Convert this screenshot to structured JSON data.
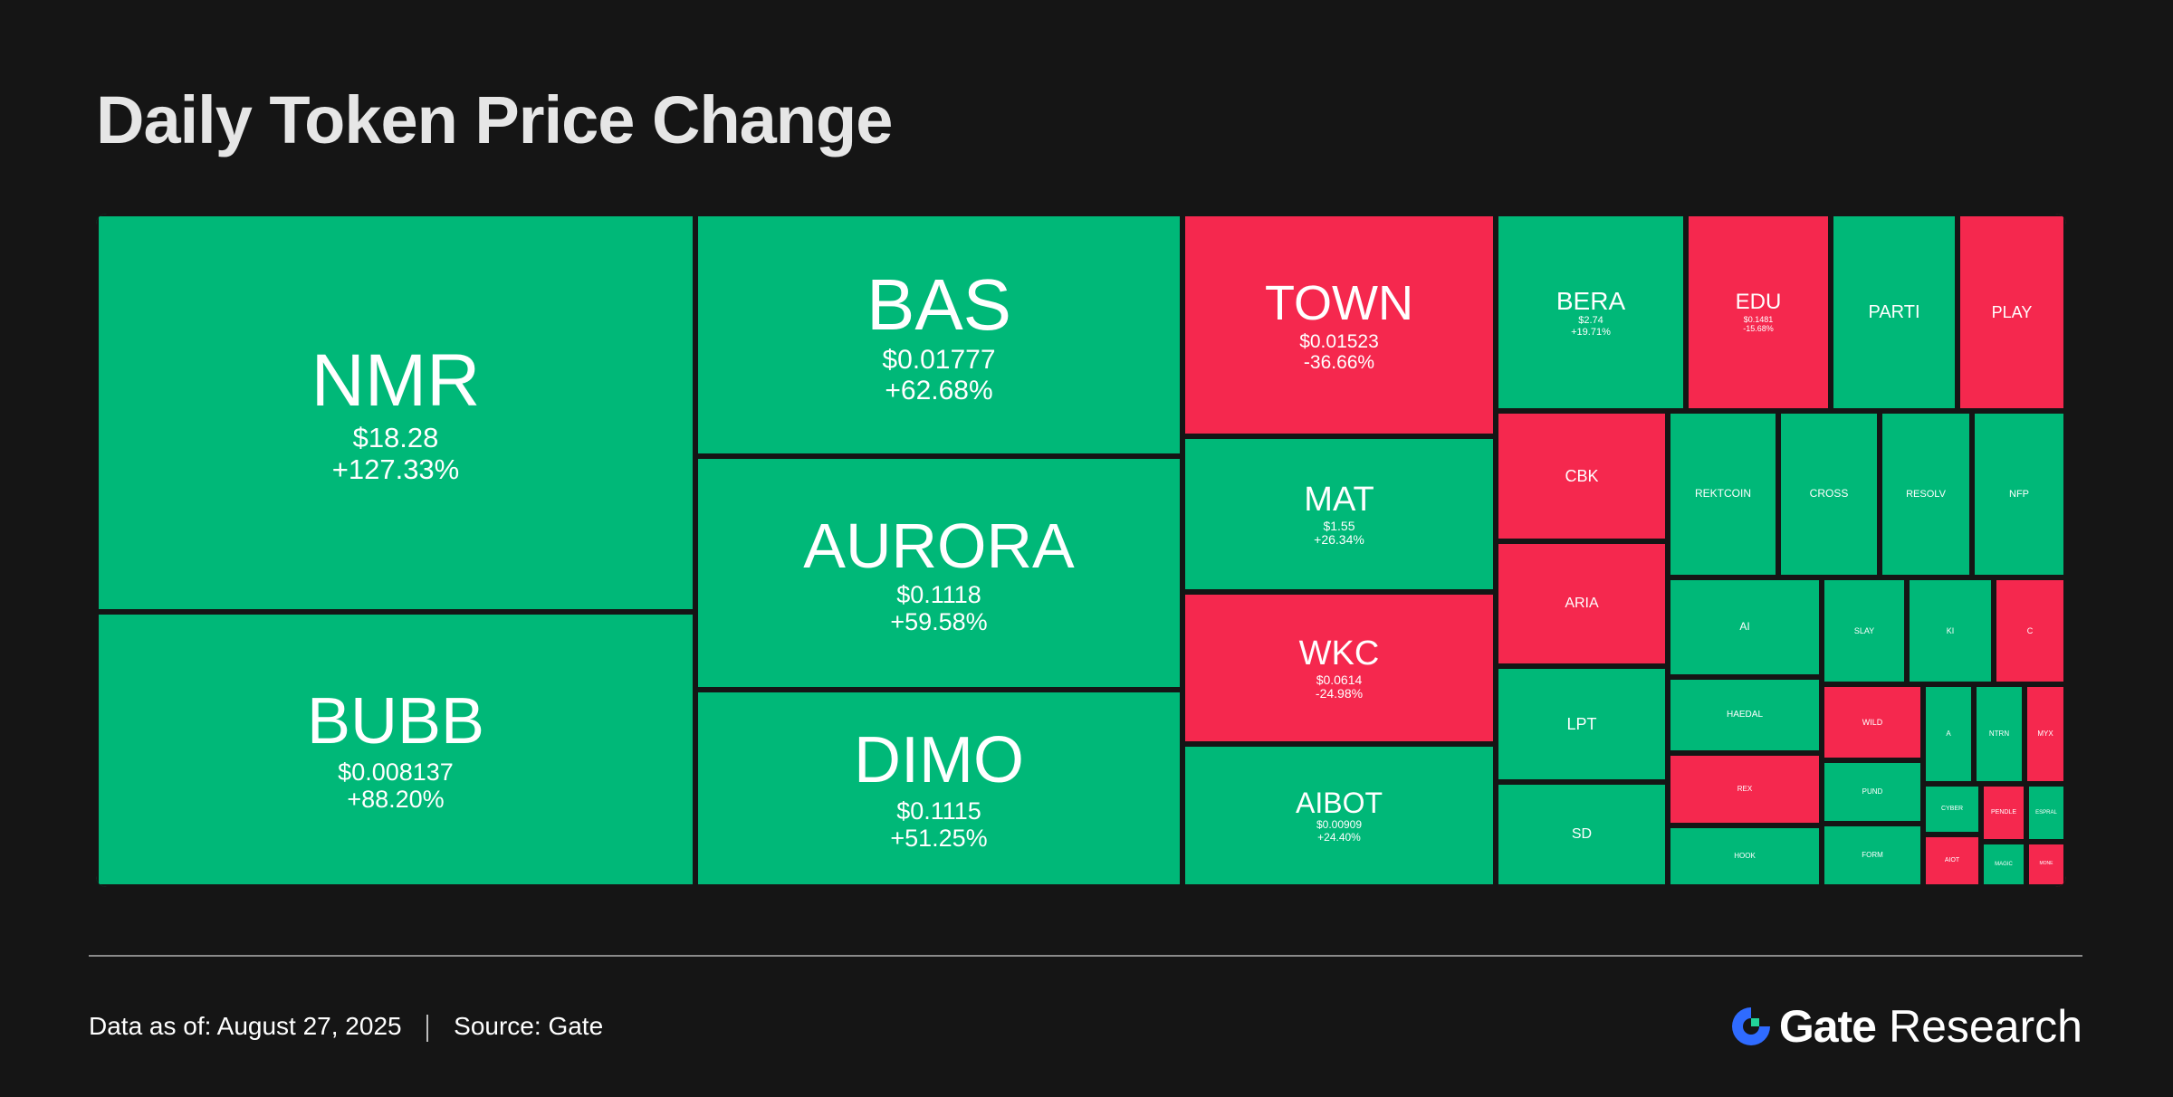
{
  "title": "Daily Token Price Change",
  "footer": {
    "date_label": "Data as of:",
    "date_value": "August  27, 2025",
    "source_label": "Source:",
    "source_value": "Gate"
  },
  "brand": {
    "name": "Gate",
    "suffix": "Research"
  },
  "colors": {
    "up": "#00b878",
    "down": "#f5284e",
    "background": "#151515"
  },
  "chart_data": {
    "type": "treemap",
    "title": "Daily Token Price Change",
    "tiles": [
      {
        "symbol": "NMR",
        "price": "$18.28",
        "change": "+127.33%",
        "direction": "up"
      },
      {
        "symbol": "BUBB",
        "price": "$0.008137",
        "change": "+88.20%",
        "direction": "up"
      },
      {
        "symbol": "BAS",
        "price": "$0.01777",
        "change": "+62.68%",
        "direction": "up"
      },
      {
        "symbol": "AURORA",
        "price": "$0.1118",
        "change": "+59.58%",
        "direction": "up"
      },
      {
        "symbol": "DIMO",
        "price": "$0.1115",
        "change": "+51.25%",
        "direction": "up"
      },
      {
        "symbol": "TOWN",
        "price": "$0.01523",
        "change": "-36.66%",
        "direction": "down"
      },
      {
        "symbol": "MAT",
        "price": "$1.55",
        "change": "+26.34%",
        "direction": "up"
      },
      {
        "symbol": "WKC",
        "price": "$0.0614",
        "change": "-24.98%",
        "direction": "down"
      },
      {
        "symbol": "AIBOT",
        "price": "$0.00909",
        "change": "+24.40%",
        "direction": "up"
      },
      {
        "symbol": "BERA",
        "price": "$2.74",
        "change": "+19.71%",
        "direction": "up"
      },
      {
        "symbol": "EDU",
        "price": "$0.1481",
        "change": "-15.68%",
        "direction": "down"
      },
      {
        "symbol": "PARTI",
        "price": "",
        "change": "",
        "direction": "up"
      },
      {
        "symbol": "PLAY",
        "price": "",
        "change": "",
        "direction": "down"
      },
      {
        "symbol": "CBK",
        "price": "",
        "change": "",
        "direction": "down"
      },
      {
        "symbol": "ARIA",
        "price": "",
        "change": "",
        "direction": "down"
      },
      {
        "symbol": "LPT",
        "price": "",
        "change": "",
        "direction": "up"
      },
      {
        "symbol": "SD",
        "price": "",
        "change": "",
        "direction": "up"
      },
      {
        "symbol": "REKTCOIN",
        "price": "",
        "change": "",
        "direction": "up"
      },
      {
        "symbol": "CROSS",
        "price": "",
        "change": "",
        "direction": "up"
      },
      {
        "symbol": "RESOLV",
        "price": "",
        "change": "",
        "direction": "up"
      },
      {
        "symbol": "NFP",
        "price": "",
        "change": "",
        "direction": "up"
      },
      {
        "symbol": "AI",
        "price": "",
        "change": "",
        "direction": "up"
      },
      {
        "symbol": "SLAY",
        "price": "",
        "change": "",
        "direction": "up"
      },
      {
        "symbol": "KI",
        "price": "",
        "change": "",
        "direction": "up"
      },
      {
        "symbol": "C",
        "price": "",
        "change": "",
        "direction": "down"
      },
      {
        "symbol": "HAEDAL",
        "price": "",
        "change": "",
        "direction": "up"
      },
      {
        "symbol": "WILD",
        "price": "",
        "change": "",
        "direction": "down"
      },
      {
        "symbol": "A",
        "price": "",
        "change": "",
        "direction": "up"
      },
      {
        "symbol": "NTRN",
        "price": "",
        "change": "",
        "direction": "up"
      },
      {
        "symbol": "MYX",
        "price": "",
        "change": "",
        "direction": "down"
      },
      {
        "symbol": "REX",
        "price": "",
        "change": "",
        "direction": "down"
      },
      {
        "symbol": "PUND",
        "price": "",
        "change": "",
        "direction": "up"
      },
      {
        "symbol": "CYBER",
        "price": "",
        "change": "",
        "direction": "up"
      },
      {
        "symbol": "PENDLE",
        "price": "",
        "change": "",
        "direction": "down"
      },
      {
        "symbol": "ESPRAL",
        "price": "",
        "change": "",
        "direction": "up"
      },
      {
        "symbol": "HOOK",
        "price": "",
        "change": "",
        "direction": "up"
      },
      {
        "symbol": "FORM",
        "price": "",
        "change": "",
        "direction": "up"
      },
      {
        "symbol": "AIOT",
        "price": "",
        "change": "",
        "direction": "down"
      },
      {
        "symbol": "MAGIC",
        "price": "",
        "change": "",
        "direction": "up"
      },
      {
        "symbol": "MONE",
        "price": "",
        "change": "",
        "direction": "down"
      }
    ]
  }
}
